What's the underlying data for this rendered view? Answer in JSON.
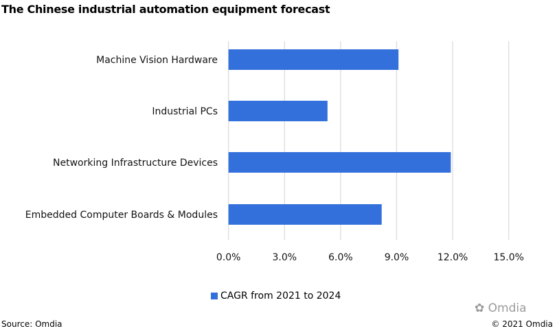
{
  "chart_data": {
    "type": "bar",
    "orientation": "horizontal",
    "title": "The Chinese industrial automation equipment forecast",
    "categories": [
      "Machine Vision Hardware",
      "Industrial PCs",
      "Networking Infrastructure Devices",
      "Embedded Computer Boards & Modules"
    ],
    "series": [
      {
        "name": "CAGR from 2021 to 2024",
        "values": [
          9.1,
          5.3,
          11.9,
          8.2
        ],
        "color": "#3370db"
      }
    ],
    "xlim": [
      0,
      15
    ],
    "xticks": [
      "0.0%",
      "3.0%",
      "6.0%",
      "9.0%",
      "12.0%",
      "15.0%"
    ],
    "grid": true,
    "legend": "bottom",
    "xlabel": "",
    "ylabel": ""
  },
  "footer": {
    "source": "Source: Omdia",
    "copyright": "© 2021 Omdia",
    "logo": "Omdia"
  }
}
